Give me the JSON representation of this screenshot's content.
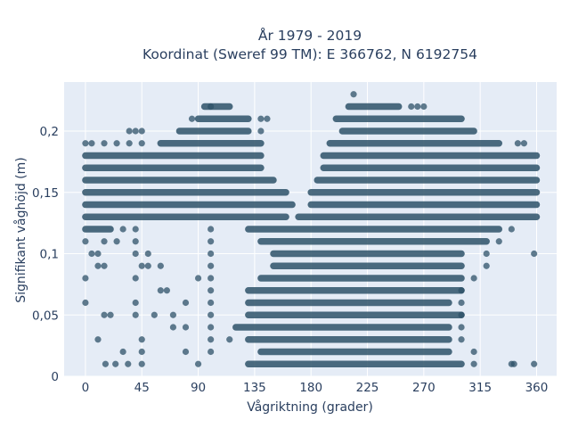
{
  "chart_data": {
    "type": "scatter",
    "title_line1": "År 1979 - 2019",
    "title_line2": "Koordinat (Sweref 99 TM): E 366762, N 6192754",
    "xlabel": "Vågriktning (grader)",
    "ylabel": "Signifikant våghöjd (m)",
    "xlim": [
      -17,
      376
    ],
    "ylim": [
      0,
      0.24
    ],
    "x_ticks": [
      0,
      45,
      90,
      135,
      180,
      225,
      270,
      315,
      360
    ],
    "x_tick_labels": [
      "0",
      "45",
      "90",
      "135",
      "180",
      "225",
      "270",
      "315",
      "360"
    ],
    "y_ticks": [
      0,
      0.05,
      0.1,
      0.15,
      0.2
    ],
    "y_tick_labels": [
      "0",
      "0,05",
      "0,1",
      "0,15",
      "0,2"
    ],
    "grid": true,
    "legend": "none",
    "marker_color": "#2e5268",
    "plot_background": "#e5ecf6",
    "series": [
      {
        "y": 0.01,
        "segments": [
          [
            130,
            300
          ]
        ],
        "scattered": [
          16,
          24,
          34,
          45,
          90,
          310,
          340,
          342,
          358
        ]
      },
      {
        "y": 0.02,
        "segments": [
          [
            140,
            290
          ]
        ],
        "scattered": [
          30,
          45,
          80,
          100,
          310
        ]
      },
      {
        "y": 0.03,
        "segments": [
          [
            130,
            290
          ]
        ],
        "scattered": [
          10,
          45,
          100,
          115,
          300
        ]
      },
      {
        "y": 0.04,
        "segments": [
          [
            120,
            290
          ]
        ],
        "scattered": [
          70,
          80,
          100,
          300
        ]
      },
      {
        "y": 0.05,
        "segments": [
          [
            130,
            300
          ]
        ],
        "scattered": [
          15,
          20,
          40,
          55,
          70,
          100,
          300
        ]
      },
      {
        "y": 0.06,
        "segments": [
          [
            130,
            290
          ]
        ],
        "scattered": [
          0,
          40,
          80,
          100,
          300
        ]
      },
      {
        "y": 0.07,
        "segments": [
          [
            130,
            300
          ]
        ],
        "scattered": [
          60,
          65,
          100,
          300
        ]
      },
      {
        "y": 0.08,
        "segments": [
          [
            140,
            300
          ]
        ],
        "scattered": [
          0,
          40,
          90,
          100,
          310
        ]
      },
      {
        "y": 0.09,
        "segments": [
          [
            150,
            300
          ]
        ],
        "scattered": [
          10,
          15,
          45,
          50,
          60,
          100,
          320
        ]
      },
      {
        "y": 0.1,
        "segments": [
          [
            150,
            300
          ]
        ],
        "scattered": [
          5,
          10,
          40,
          50,
          100,
          320,
          358
        ]
      },
      {
        "y": 0.11,
        "segments": [
          [
            140,
            320
          ]
        ],
        "scattered": [
          0,
          15,
          25,
          40,
          100,
          330
        ]
      },
      {
        "y": 0.12,
        "segments": [
          [
            0,
            20
          ],
          [
            130,
            330
          ]
        ],
        "scattered": [
          30,
          40,
          100,
          340
        ]
      },
      {
        "y": 0.13,
        "segments": [
          [
            0,
            160
          ],
          [
            170,
            360
          ]
        ],
        "scattered": []
      },
      {
        "y": 0.14,
        "segments": [
          [
            0,
            165
          ],
          [
            180,
            360
          ]
        ],
        "scattered": []
      },
      {
        "y": 0.15,
        "segments": [
          [
            0,
            160
          ],
          [
            180,
            360
          ]
        ],
        "scattered": []
      },
      {
        "y": 0.16,
        "segments": [
          [
            0,
            150
          ],
          [
            185,
            360
          ]
        ],
        "scattered": []
      },
      {
        "y": 0.17,
        "segments": [
          [
            0,
            140
          ],
          [
            190,
            360
          ]
        ],
        "scattered": []
      },
      {
        "y": 0.18,
        "segments": [
          [
            0,
            140
          ],
          [
            190,
            360
          ]
        ],
        "scattered": []
      },
      {
        "y": 0.19,
        "segments": [
          [
            60,
            140
          ],
          [
            195,
            330
          ]
        ],
        "scattered": [
          0,
          5,
          15,
          25,
          35,
          45,
          345,
          350
        ]
      },
      {
        "y": 0.2,
        "segments": [
          [
            75,
            130
          ],
          [
            205,
            310
          ]
        ],
        "scattered": [
          35,
          40,
          45,
          140
        ]
      },
      {
        "y": 0.21,
        "segments": [
          [
            90,
            130
          ],
          [
            200,
            300
          ]
        ],
        "scattered": [
          85,
          140,
          145
        ]
      },
      {
        "y": 0.22,
        "segments": [
          [
            95,
            115
          ],
          [
            210,
            250
          ]
        ],
        "scattered": [
          100,
          260,
          265,
          270
        ]
      },
      {
        "y": 0.23,
        "segments": [],
        "scattered": [
          214
        ]
      }
    ]
  }
}
